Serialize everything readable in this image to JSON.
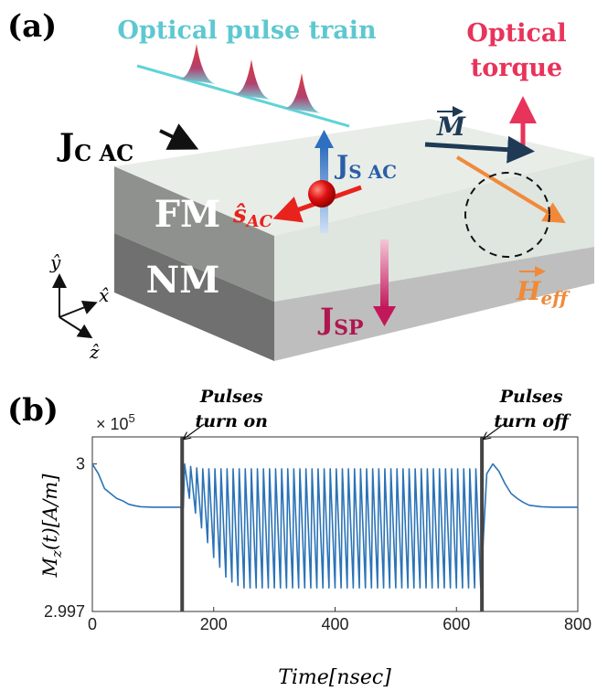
{
  "panel_labels": [
    "(a)",
    "(b)"
  ],
  "diagram": {
    "pulse_train_label": "Optical pulse train",
    "torque_label": [
      "Optical",
      "torque"
    ],
    "jc": {
      "main": "J",
      "sub": "C AC"
    },
    "js": {
      "main": "J",
      "sub": "S AC"
    },
    "s": {
      "main": "ŝ",
      "sub": "AC"
    },
    "m": "M",
    "h": {
      "main": "H",
      "sub": "eff"
    },
    "fm": "FM",
    "nm": "NM",
    "jsp": {
      "main": "J",
      "sub": "SP"
    },
    "axes": [
      "ŷ",
      "x̂",
      "ẑ"
    ]
  },
  "chart_data": {
    "type": "line",
    "color": "#2b73b6",
    "xlabel": "Time[nsec]",
    "ylabel": {
      "main": "M",
      "sub": "z",
      "rest": "(t)[A/m]"
    },
    "multiplier": {
      "base": "× 10",
      "exp": "5"
    },
    "xlim": [
      0,
      800
    ],
    "xticks": [
      0,
      200,
      400,
      600,
      800
    ],
    "ylim": [
      2.997,
      3.00055
    ],
    "yticks": [
      2.997,
      3
    ],
    "markers": [
      {
        "x": 148,
        "label": [
          "Pulses",
          "turn on"
        ]
      },
      {
        "x": 642,
        "label": [
          "Pulses",
          "turn off"
        ]
      }
    ],
    "x": [
      0,
      10,
      20,
      30,
      40,
      50,
      60,
      70,
      80,
      100,
      120,
      140,
      150,
      152,
      160,
      162,
      170,
      172,
      180,
      182,
      190,
      192,
      200,
      202,
      210,
      212,
      220,
      222,
      230,
      232,
      240,
      242,
      250,
      252,
      260,
      262,
      270,
      272,
      280,
      282,
      290,
      292,
      300,
      302,
      310,
      312,
      320,
      322,
      330,
      332,
      340,
      342,
      350,
      352,
      360,
      362,
      370,
      372,
      380,
      382,
      390,
      392,
      400,
      402,
      410,
      412,
      420,
      422,
      430,
      432,
      440,
      442,
      450,
      452,
      460,
      462,
      470,
      472,
      480,
      482,
      490,
      492,
      500,
      502,
      510,
      512,
      520,
      522,
      530,
      532,
      540,
      542,
      550,
      552,
      560,
      562,
      570,
      572,
      580,
      582,
      590,
      592,
      600,
      602,
      610,
      612,
      620,
      622,
      630,
      632,
      640,
      650,
      660,
      670,
      680,
      690,
      700,
      710,
      720,
      740,
      760,
      780,
      800
    ],
    "values": [
      3,
      2.9998,
      2.9995,
      2.9994,
      2.9993,
      2.99925,
      2.99918,
      2.99915,
      2.99913,
      2.99912,
      2.99912,
      2.99912,
      2.99912,
      3,
      2.9993,
      2.99995,
      2.999,
      2.99992,
      2.9987,
      2.9999,
      2.9984,
      2.9999,
      2.9981,
      2.9999,
      2.9979,
      2.9999,
      2.9977,
      2.9999,
      2.9976,
      2.9999,
      2.99753,
      2.9999,
      2.99748,
      2.9999,
      2.99748,
      2.9999,
      2.99748,
      2.9999,
      2.99748,
      2.9999,
      2.99748,
      2.9999,
      2.99748,
      2.9999,
      2.99748,
      2.9999,
      2.99748,
      2.9999,
      2.99748,
      2.9999,
      2.99748,
      2.9999,
      2.99748,
      2.9999,
      2.99748,
      2.9999,
      2.99748,
      2.9999,
      2.99748,
      2.9999,
      2.99748,
      2.9999,
      2.99748,
      2.9999,
      2.99748,
      2.9999,
      2.99748,
      2.9999,
      2.99748,
      2.9999,
      2.99748,
      2.9999,
      2.99748,
      2.9999,
      2.99748,
      2.9999,
      2.99748,
      2.9999,
      2.99748,
      2.9999,
      2.99748,
      2.9999,
      2.99748,
      2.9999,
      2.99748,
      2.9999,
      2.99748,
      2.9999,
      2.99748,
      2.9999,
      2.99748,
      2.9999,
      2.99748,
      2.9999,
      2.99748,
      2.9999,
      2.99748,
      2.9999,
      2.99748,
      2.9999,
      2.99748,
      2.9999,
      2.99748,
      2.9999,
      2.99748,
      2.9999,
      2.99748,
      2.9999,
      2.99748,
      2.9999,
      2.99748,
      2.9998,
      3,
      2.99985,
      2.9996,
      2.9994,
      2.9993,
      2.99922,
      2.99916,
      2.99913,
      2.99912,
      2.99912,
      2.99912
    ]
  }
}
